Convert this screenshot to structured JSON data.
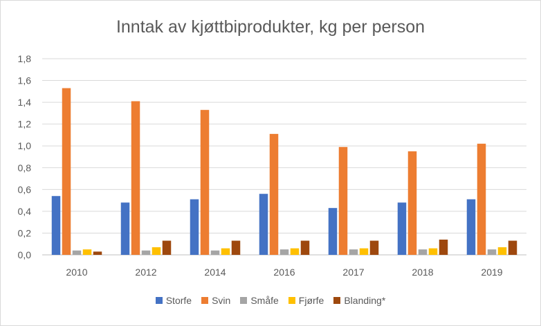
{
  "chart_data": {
    "type": "bar",
    "title": "Inntak av kjøttbiprodukter, kg per person",
    "xlabel": "",
    "ylabel": "",
    "categories": [
      "2010",
      "2012",
      "2014",
      "2016",
      "2017",
      "2018",
      "2019"
    ],
    "ylim": [
      0,
      1.8
    ],
    "yticks": [
      "0,0",
      "0,2",
      "0,4",
      "0,6",
      "0,8",
      "1,0",
      "1,2",
      "1,4",
      "1,6",
      "1,8"
    ],
    "grid": true,
    "legend_position": "bottom",
    "series": [
      {
        "name": "Storfe",
        "color": "#4472C4",
        "values": [
          0.54,
          0.48,
          0.51,
          0.56,
          0.43,
          0.48,
          0.51
        ]
      },
      {
        "name": "Svin",
        "color": "#ED7D31",
        "values": [
          1.53,
          1.41,
          1.33,
          1.11,
          0.99,
          0.95,
          1.02
        ]
      },
      {
        "name": "Småfe",
        "color": "#A5A5A5",
        "values": [
          0.04,
          0.04,
          0.04,
          0.05,
          0.05,
          0.05,
          0.05
        ]
      },
      {
        "name": "Fjørfe",
        "color": "#FFC000",
        "values": [
          0.05,
          0.07,
          0.06,
          0.06,
          0.06,
          0.06,
          0.07
        ]
      },
      {
        "name": "Blanding*",
        "color": "#9E480E",
        "values": [
          0.03,
          0.13,
          0.13,
          0.13,
          0.13,
          0.14,
          0.13
        ]
      }
    ]
  }
}
